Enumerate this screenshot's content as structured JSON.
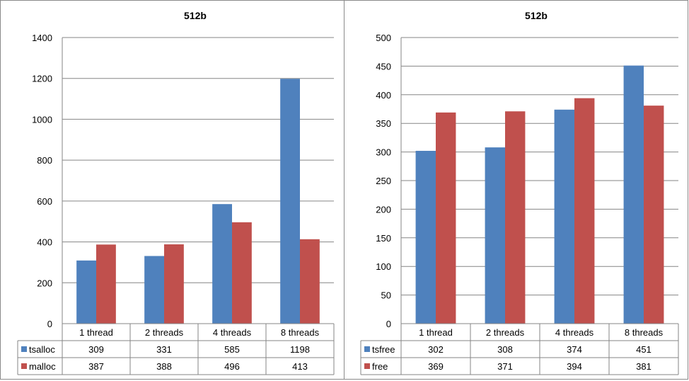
{
  "chart_data": [
    {
      "type": "bar",
      "title": "512b",
      "categories": [
        "1 thread",
        "2 threads",
        "4 threads",
        "8 threads"
      ],
      "series": [
        {
          "name": "tsalloc",
          "color": "#4f81bd",
          "values": [
            309,
            331,
            585,
            1198
          ]
        },
        {
          "name": "malloc",
          "color": "#c0504d",
          "values": [
            387,
            388,
            496,
            413
          ]
        }
      ],
      "ylim": [
        0,
        1400
      ],
      "yticks": [
        0,
        200,
        400,
        600,
        800,
        1000,
        1200,
        1400
      ],
      "grid": true,
      "legend": "data-table"
    },
    {
      "type": "bar",
      "title": "512b",
      "categories": [
        "1 thread",
        "2 threads",
        "4 threads",
        "8 threads"
      ],
      "series": [
        {
          "name": "tsfree",
          "color": "#4f81bd",
          "values": [
            302,
            308,
            374,
            451
          ]
        },
        {
          "name": "free",
          "color": "#c0504d",
          "values": [
            369,
            371,
            394,
            381
          ]
        }
      ],
      "ylim": [
        0,
        500
      ],
      "yticks": [
        0,
        50,
        100,
        150,
        200,
        250,
        300,
        350,
        400,
        450,
        500
      ],
      "grid": true,
      "legend": "data-table"
    }
  ]
}
